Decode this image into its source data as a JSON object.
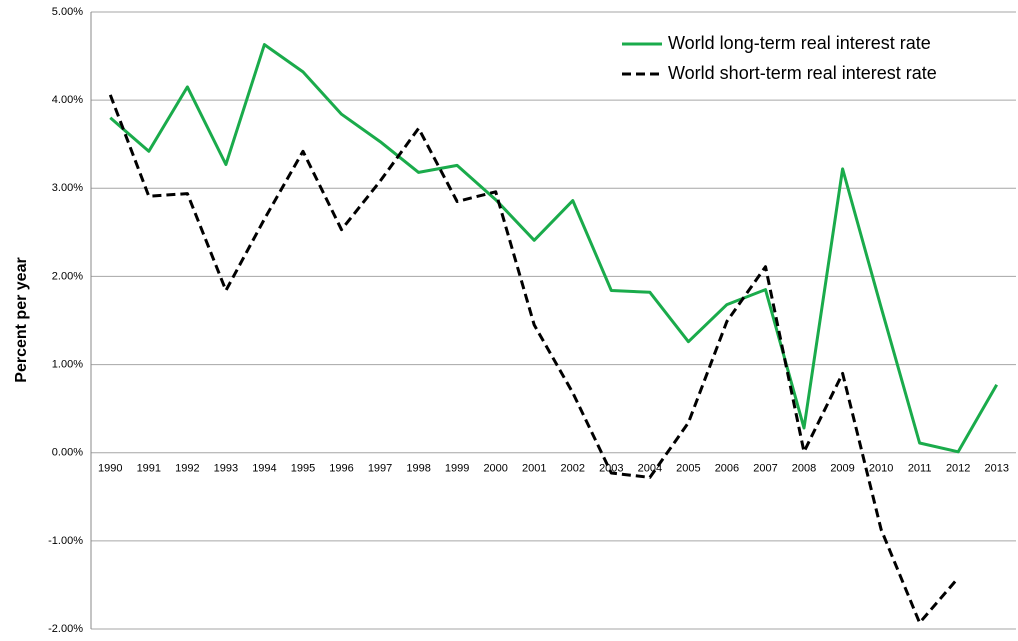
{
  "chart_data": {
    "type": "line",
    "y_label": "Percent per year",
    "categories": [
      "1990",
      "1991",
      "1992",
      "1993",
      "1994",
      "1995",
      "1996",
      "1997",
      "1998",
      "1999",
      "2000",
      "2001",
      "2002",
      "2003",
      "2004",
      "2005",
      "2006",
      "2007",
      "2008",
      "2009",
      "2010",
      "2011",
      "2012",
      "2013"
    ],
    "series": [
      {
        "name": "World long-term real interest rate",
        "color": "#1aab4b",
        "dash": false,
        "values": [
          3.8,
          3.42,
          4.15,
          3.27,
          4.63,
          4.32,
          3.84,
          3.53,
          3.18,
          3.26,
          2.87,
          2.41,
          2.86,
          1.84,
          1.82,
          1.26,
          1.68,
          1.85,
          0.28,
          3.22,
          1.65,
          0.11,
          0.01,
          0.77
        ]
      },
      {
        "name": "World short-term real interest rate",
        "color": "#000000",
        "dash": true,
        "values": [
          4.06,
          2.91,
          2.94,
          1.84,
          2.65,
          3.42,
          2.53,
          3.08,
          3.68,
          2.85,
          2.96,
          1.45,
          0.68,
          -0.23,
          -0.28,
          0.34,
          1.49,
          2.11,
          0.01,
          0.9,
          -0.87,
          -1.93,
          -1.42,
          null
        ]
      }
    ],
    "ylim": [
      -2,
      5
    ],
    "yticks": [
      {
        "value": -2,
        "label": "-2.00%"
      },
      {
        "value": -1,
        "label": "-1.00%"
      },
      {
        "value": 0,
        "label": "0.00%"
      },
      {
        "value": 1,
        "label": "1.00%"
      },
      {
        "value": 2,
        "label": "2.00%"
      },
      {
        "value": 3,
        "label": "3.00%"
      },
      {
        "value": 4,
        "label": "4.00%"
      },
      {
        "value": 5,
        "label": "5.00%"
      }
    ],
    "grid": true,
    "legend": "top-right"
  }
}
